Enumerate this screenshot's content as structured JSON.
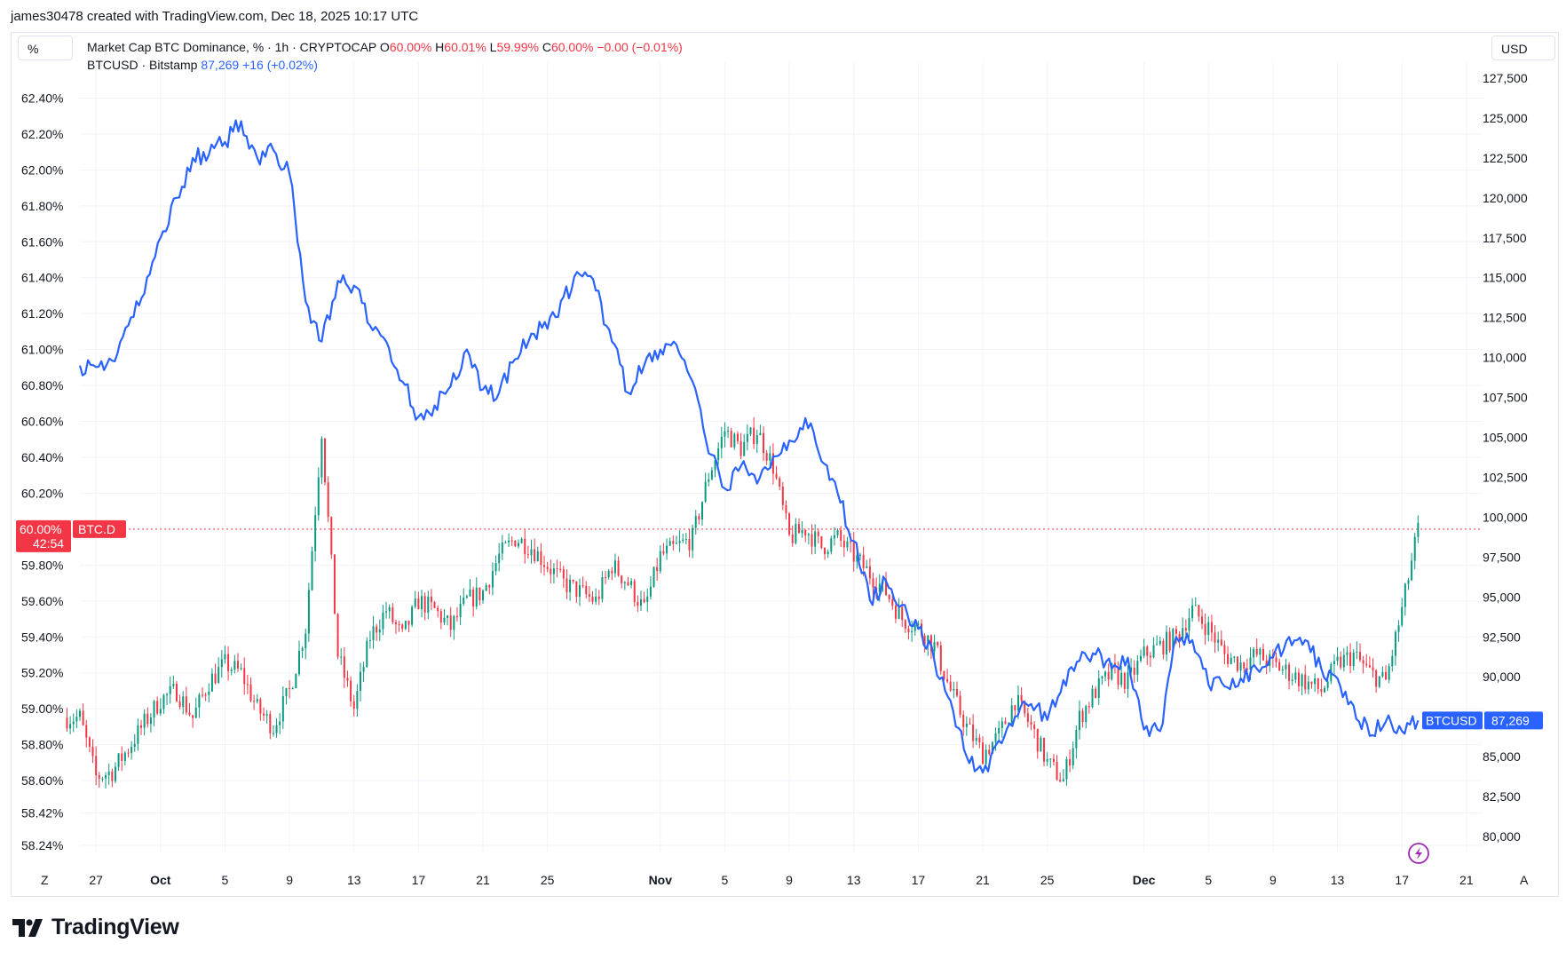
{
  "credit": "james30478 created with TradingView.com, Dec 18, 2025 10:17 UTC",
  "header": {
    "left_scale_button": "%",
    "right_scale_button": "USD",
    "series1": {
      "label": "Market Cap BTC Dominance, % · 1h · CRYPTOCAP",
      "o_label": "O",
      "o_value": "60.00%",
      "h_label": "H",
      "h_value": "60.01%",
      "l_label": "L",
      "l_value": "59.99%",
      "c_label": "C",
      "c_value": "60.00%",
      "change": "−0.00 (−0.01%)"
    },
    "series2": {
      "label": "BTCUSD · Bitstamp",
      "value": "87,269",
      "change": "+16 (+0.02%)"
    }
  },
  "price_tags": {
    "dominance": {
      "value": "60.00%",
      "countdown": "42:54",
      "symbol": "BTC.D",
      "color": "#f23645"
    },
    "btcusd": {
      "symbol": "BTCUSD",
      "value": "87,269",
      "color": "#2962ff"
    }
  },
  "axis_buttons": {
    "left": "Z",
    "right": "A"
  },
  "footer": {
    "brand": "TradingView"
  },
  "colors": {
    "up": "#089981",
    "down": "#f23645",
    "btc_line": "#2962ff",
    "grid": "#f0f3fa"
  },
  "chart_data": {
    "type": "line",
    "x_axis": {
      "ticks": [
        "27",
        "Oct",
        "5",
        "9",
        "13",
        "17",
        "21",
        "25",
        "Nov",
        "5",
        "9",
        "13",
        "17",
        "21",
        "25",
        "Dec",
        "5",
        "9",
        "13",
        "17",
        "21"
      ],
      "tick_dates": [
        "2025-09-27",
        "2025-10-01",
        "2025-10-05",
        "2025-10-09",
        "2025-10-13",
        "2025-10-17",
        "2025-10-21",
        "2025-10-25",
        "2025-11-01",
        "2025-11-05",
        "2025-11-09",
        "2025-11-13",
        "2025-11-17",
        "2025-11-21",
        "2025-11-25",
        "2025-12-01",
        "2025-12-05",
        "2025-12-09",
        "2025-12-13",
        "2025-12-17",
        "2025-12-21"
      ],
      "range": [
        "2025-09-26",
        "2025-12-22"
      ]
    },
    "left_axis": {
      "unit": "%",
      "ticks": [
        "62.40%",
        "62.20%",
        "62.00%",
        "61.80%",
        "61.60%",
        "61.40%",
        "61.20%",
        "61.00%",
        "60.80%",
        "60.60%",
        "60.40%",
        "60.20%",
        "59.80%",
        "59.60%",
        "59.40%",
        "59.20%",
        "59.00%",
        "58.80%",
        "58.60%",
        "58.42%",
        "58.24%"
      ],
      "range": [
        58.2,
        62.6
      ]
    },
    "right_axis": {
      "unit": "USD",
      "ticks": [
        "127,500",
        "125,000",
        "122,500",
        "120,000",
        "117,500",
        "115,000",
        "112,500",
        "110,000",
        "107,500",
        "105,000",
        "102,500",
        "100,000",
        "97,500",
        "95,000",
        "92,500",
        "90,000",
        "85,000",
        "82,500",
        "80,000"
      ],
      "range": [
        79000,
        128500
      ]
    },
    "series": [
      {
        "name": "Market Cap BTC Dominance, %",
        "kind": "candles_1h",
        "axis": "left",
        "x": [
          "2025-09-26",
          "2025-09-27",
          "2025-09-28",
          "2025-09-29",
          "2025-09-30",
          "2025-10-01",
          "2025-10-02",
          "2025-10-03",
          "2025-10-04",
          "2025-10-05",
          "2025-10-06",
          "2025-10-07",
          "2025-10-08",
          "2025-10-09",
          "2025-10-10",
          "2025-10-11",
          "2025-10-12",
          "2025-10-13",
          "2025-10-14",
          "2025-10-15",
          "2025-10-16",
          "2025-10-17",
          "2025-10-18",
          "2025-10-19",
          "2025-10-20",
          "2025-10-21",
          "2025-10-22",
          "2025-10-23",
          "2025-10-24",
          "2025-10-25",
          "2025-10-26",
          "2025-10-27",
          "2025-10-28",
          "2025-10-29",
          "2025-10-30",
          "2025-10-31",
          "2025-11-01",
          "2025-11-02",
          "2025-11-03",
          "2025-11-04",
          "2025-11-05",
          "2025-11-06",
          "2025-11-07",
          "2025-11-08",
          "2025-11-09",
          "2025-11-10",
          "2025-11-11",
          "2025-11-12",
          "2025-11-13",
          "2025-11-14",
          "2025-11-15",
          "2025-11-16",
          "2025-11-17",
          "2025-11-18",
          "2025-11-19",
          "2025-11-20",
          "2025-11-21",
          "2025-11-22",
          "2025-11-23",
          "2025-11-24",
          "2025-11-25",
          "2025-11-26",
          "2025-11-27",
          "2025-11-28",
          "2025-11-29",
          "2025-11-30",
          "2025-12-01",
          "2025-12-02",
          "2025-12-03",
          "2025-12-04",
          "2025-12-05",
          "2025-12-06",
          "2025-12-07",
          "2025-12-08",
          "2025-12-09",
          "2025-12-10",
          "2025-12-11",
          "2025-12-12",
          "2025-12-13",
          "2025-12-14",
          "2025-12-15",
          "2025-12-16",
          "2025-12-17",
          "2025-12-18"
        ],
        "values": [
          58.95,
          58.62,
          58.65,
          58.78,
          58.92,
          59.05,
          59.1,
          58.95,
          59.15,
          59.25,
          59.2,
          59.0,
          58.9,
          59.1,
          59.45,
          60.55,
          59.3,
          59.0,
          59.4,
          59.55,
          59.4,
          59.6,
          59.55,
          59.45,
          59.6,
          59.65,
          59.85,
          59.95,
          59.9,
          59.8,
          59.7,
          59.65,
          59.6,
          59.8,
          59.7,
          59.55,
          59.85,
          59.9,
          59.95,
          60.3,
          60.55,
          60.45,
          60.55,
          60.35,
          59.95,
          60.0,
          59.9,
          59.95,
          59.85,
          59.75,
          59.65,
          59.5,
          59.45,
          59.35,
          59.1,
          58.9,
          58.75,
          58.85,
          59.05,
          58.9,
          58.7,
          58.6,
          58.95,
          59.1,
          59.2,
          59.15,
          59.3,
          59.35,
          59.4,
          59.55,
          59.45,
          59.3,
          59.25,
          59.3,
          59.25,
          59.2,
          59.15,
          59.1,
          59.25,
          59.3,
          59.2,
          59.15,
          59.55,
          60.0
        ]
      },
      {
        "name": "BTCUSD · Bitstamp",
        "kind": "line_1h",
        "axis": "right",
        "x": [
          "2025-09-26",
          "2025-09-27",
          "2025-09-28",
          "2025-09-29",
          "2025-09-30",
          "2025-10-01",
          "2025-10-02",
          "2025-10-03",
          "2025-10-04",
          "2025-10-05",
          "2025-10-06",
          "2025-10-07",
          "2025-10-08",
          "2025-10-09",
          "2025-10-10",
          "2025-10-11",
          "2025-10-12",
          "2025-10-13",
          "2025-10-14",
          "2025-10-15",
          "2025-10-16",
          "2025-10-17",
          "2025-10-18",
          "2025-10-19",
          "2025-10-20",
          "2025-10-21",
          "2025-10-22",
          "2025-10-23",
          "2025-10-24",
          "2025-10-25",
          "2025-10-26",
          "2025-10-27",
          "2025-10-28",
          "2025-10-29",
          "2025-10-30",
          "2025-10-31",
          "2025-11-01",
          "2025-11-02",
          "2025-11-03",
          "2025-11-04",
          "2025-11-05",
          "2025-11-06",
          "2025-11-07",
          "2025-11-08",
          "2025-11-09",
          "2025-11-10",
          "2025-11-11",
          "2025-11-12",
          "2025-11-13",
          "2025-11-14",
          "2025-11-15",
          "2025-11-16",
          "2025-11-17",
          "2025-11-18",
          "2025-11-19",
          "2025-11-20",
          "2025-11-21",
          "2025-11-22",
          "2025-11-23",
          "2025-11-24",
          "2025-11-25",
          "2025-11-26",
          "2025-11-27",
          "2025-11-28",
          "2025-11-29",
          "2025-11-30",
          "2025-12-01",
          "2025-12-02",
          "2025-12-03",
          "2025-12-04",
          "2025-12-05",
          "2025-12-06",
          "2025-12-07",
          "2025-12-08",
          "2025-12-09",
          "2025-12-10",
          "2025-12-11",
          "2025-12-12",
          "2025-12-13",
          "2025-12-14",
          "2025-12-15",
          "2025-12-16",
          "2025-12-17",
          "2025-12-18"
        ],
        "values": [
          109500,
          109400,
          109800,
          112000,
          114000,
          117500,
          120000,
          122500,
          122700,
          123500,
          124800,
          122500,
          123000,
          121500,
          113500,
          111000,
          114800,
          114500,
          112000,
          111000,
          108500,
          106300,
          107000,
          108200,
          110500,
          108000,
          107800,
          109900,
          111500,
          111800,
          113800,
          115200,
          114200,
          111000,
          107800,
          109500,
          110500,
          110800,
          108500,
          104000,
          101800,
          103200,
          102100,
          103800,
          104800,
          106200,
          103500,
          101500,
          98500,
          94800,
          96000,
          94500,
          93000,
          91000,
          88500,
          85000,
          84000,
          86000,
          87500,
          88300,
          87300,
          89800,
          91000,
          91400,
          90500,
          91200,
          86700,
          86600,
          92500,
          92300,
          89500,
          89400,
          89900,
          90500,
          91200,
          92500,
          92300,
          90500,
          89900,
          88200,
          86300,
          87200,
          86600,
          87269
        ]
      }
    ]
  }
}
